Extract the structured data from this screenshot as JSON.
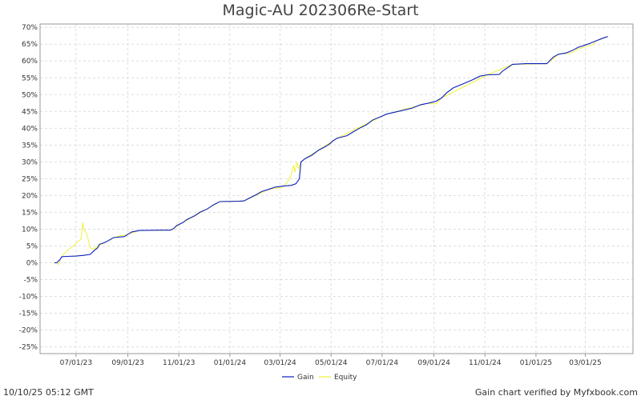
{
  "chart_data": {
    "type": "line",
    "title": "Magic-AU 202306Re-Start",
    "xlabel": "",
    "ylabel": "",
    "ylim": [
      -27,
      71
    ],
    "y_ticks": [
      70,
      65,
      60,
      55,
      50,
      45,
      40,
      35,
      30,
      25,
      20,
      15,
      10,
      5,
      0,
      -5,
      -10,
      -15,
      -20,
      -25
    ],
    "y_tick_suffix": "%",
    "x_range": [
      "2023-05-19",
      "2025-04-27"
    ],
    "x_ticks": [
      {
        "date": "2023-07-01",
        "label": "07/01/23"
      },
      {
        "date": "2023-09-01",
        "label": "09/01/23"
      },
      {
        "date": "2023-11-01",
        "label": "11/01/23"
      },
      {
        "date": "2024-01-01",
        "label": "01/01/24"
      },
      {
        "date": "2024-03-01",
        "label": "03/01/24"
      },
      {
        "date": "2024-05-01",
        "label": "05/01/24"
      },
      {
        "date": "2024-07-01",
        "label": "07/01/24"
      },
      {
        "date": "2024-09-01",
        "label": "09/01/24"
      },
      {
        "date": "2024-11-01",
        "label": "11/01/24"
      },
      {
        "date": "2025-01-01",
        "label": "01/01/25"
      },
      {
        "date": "2025-03-01",
        "label": "03/01/25"
      }
    ],
    "grid": true,
    "legend_position": "bottom-center",
    "series": [
      {
        "name": "Gain",
        "color": "#0a1fbf",
        "points": [
          [
            "2023-06-05",
            0
          ],
          [
            "2023-06-08",
            0
          ],
          [
            "2023-06-12",
            1.0
          ],
          [
            "2023-06-14",
            1.8
          ],
          [
            "2023-06-20",
            1.9
          ],
          [
            "2023-07-01",
            2.0
          ],
          [
            "2023-07-10",
            2.2
          ],
          [
            "2023-07-18",
            2.5
          ],
          [
            "2023-07-22",
            3.5
          ],
          [
            "2023-07-27",
            4.5
          ],
          [
            "2023-07-29",
            5.5
          ],
          [
            "2023-08-04",
            6.0
          ],
          [
            "2023-08-08",
            6.5
          ],
          [
            "2023-08-15",
            7.5
          ],
          [
            "2023-08-28",
            7.8
          ],
          [
            "2023-09-01",
            8.5
          ],
          [
            "2023-09-06",
            9.2
          ],
          [
            "2023-09-15",
            9.6
          ],
          [
            "2023-10-10",
            9.7
          ],
          [
            "2023-10-22",
            9.7
          ],
          [
            "2023-10-26",
            10.2
          ],
          [
            "2023-10-29",
            11.0
          ],
          [
            "2023-11-06",
            12.0
          ],
          [
            "2023-11-10",
            12.8
          ],
          [
            "2023-11-20",
            14.0
          ],
          [
            "2023-11-26",
            15.0
          ],
          [
            "2023-12-05",
            16.0
          ],
          [
            "2023-12-12",
            17.2
          ],
          [
            "2023-12-20",
            18.2
          ],
          [
            "2024-01-12",
            18.3
          ],
          [
            "2024-01-18",
            18.4
          ],
          [
            "2024-01-24",
            19.2
          ],
          [
            "2024-02-01",
            20.2
          ],
          [
            "2024-02-08",
            21.2
          ],
          [
            "2024-02-16",
            21.8
          ],
          [
            "2024-02-24",
            22.5
          ],
          [
            "2024-03-05",
            22.8
          ],
          [
            "2024-03-14",
            23.0
          ],
          [
            "2024-03-20",
            23.5
          ],
          [
            "2024-03-24",
            25.0
          ],
          [
            "2024-03-26",
            30.0
          ],
          [
            "2024-03-31",
            31.0
          ],
          [
            "2024-04-08",
            32.0
          ],
          [
            "2024-04-16",
            33.5
          ],
          [
            "2024-04-24",
            34.5
          ],
          [
            "2024-04-30",
            35.5
          ],
          [
            "2024-05-03",
            36.2
          ],
          [
            "2024-05-08",
            37.0
          ],
          [
            "2024-05-20",
            37.8
          ],
          [
            "2024-05-28",
            39.0
          ],
          [
            "2024-06-04",
            40.0
          ],
          [
            "2024-06-12",
            41.0
          ],
          [
            "2024-06-20",
            42.5
          ],
          [
            "2024-06-30",
            43.5
          ],
          [
            "2024-07-06",
            44.2
          ],
          [
            "2024-07-20",
            45.0
          ],
          [
            "2024-08-06",
            46.0
          ],
          [
            "2024-08-16",
            47.0
          ],
          [
            "2024-08-26",
            47.5
          ],
          [
            "2024-09-03",
            48.0
          ],
          [
            "2024-09-10",
            49.0
          ],
          [
            "2024-09-16",
            50.5
          ],
          [
            "2024-09-24",
            52.0
          ],
          [
            "2024-10-06",
            53.2
          ],
          [
            "2024-10-18",
            54.5
          ],
          [
            "2024-10-26",
            55.5
          ],
          [
            "2024-11-04",
            55.9
          ],
          [
            "2024-11-18",
            56.0
          ],
          [
            "2024-11-22",
            57.0
          ],
          [
            "2024-11-28",
            58.0
          ],
          [
            "2024-12-04",
            59.0
          ],
          [
            "2024-12-20",
            59.2
          ],
          [
            "2025-01-06",
            59.2
          ],
          [
            "2025-01-14",
            59.2
          ],
          [
            "2025-01-17",
            60.0
          ],
          [
            "2025-01-22",
            61.2
          ],
          [
            "2025-01-28",
            62.0
          ],
          [
            "2025-02-06",
            62.4
          ],
          [
            "2025-02-14",
            63.2
          ],
          [
            "2025-02-20",
            64.0
          ],
          [
            "2025-03-04",
            65.0
          ],
          [
            "2025-03-14",
            66.0
          ],
          [
            "2025-03-22",
            66.8
          ],
          [
            "2025-03-28",
            67.3
          ]
        ]
      },
      {
        "name": "Equity",
        "color": "#f0f03a",
        "points": [
          [
            "2023-06-05",
            0
          ],
          [
            "2023-06-08",
            0
          ],
          [
            "2023-06-10",
            -0.5
          ],
          [
            "2023-06-12",
            1.0
          ],
          [
            "2023-06-16",
            2.5
          ],
          [
            "2023-06-22",
            4.0
          ],
          [
            "2023-06-28",
            5.0
          ],
          [
            "2023-07-04",
            6.5
          ],
          [
            "2023-07-07",
            7.0
          ],
          [
            "2023-07-09",
            12.0
          ],
          [
            "2023-07-10",
            10.0
          ],
          [
            "2023-07-13",
            9.0
          ],
          [
            "2023-07-15",
            7.5
          ],
          [
            "2023-07-18",
            4.5
          ],
          [
            "2023-07-22",
            4.0
          ],
          [
            "2023-07-27",
            5.0
          ],
          [
            "2023-08-04",
            6.0
          ],
          [
            "2023-08-15",
            7.5
          ],
          [
            "2023-09-01",
            8.5
          ],
          [
            "2023-09-15",
            9.6
          ],
          [
            "2023-10-22",
            9.7
          ],
          [
            "2023-11-06",
            12.0
          ],
          [
            "2023-12-20",
            18.2
          ],
          [
            "2024-01-18",
            18.4
          ],
          [
            "2024-02-16",
            21.8
          ],
          [
            "2024-03-04",
            22.5
          ],
          [
            "2024-03-10",
            24.0
          ],
          [
            "2024-03-14",
            26.0
          ],
          [
            "2024-03-17",
            29.0
          ],
          [
            "2024-03-19",
            27.0
          ],
          [
            "2024-03-21",
            30.0
          ],
          [
            "2024-03-23",
            28.0
          ],
          [
            "2024-03-26",
            30.0
          ],
          [
            "2024-03-31",
            31.0
          ],
          [
            "2024-05-08",
            37.0
          ],
          [
            "2024-07-06",
            44.2
          ],
          [
            "2024-08-26",
            47.5
          ],
          [
            "2024-09-03",
            47.2
          ],
          [
            "2024-09-10",
            49.0
          ],
          [
            "2024-11-04",
            55.9
          ],
          [
            "2024-12-04",
            59.0
          ],
          [
            "2025-01-14",
            59.2
          ],
          [
            "2025-01-28",
            62.0
          ],
          [
            "2025-02-14",
            62.5
          ],
          [
            "2025-02-20",
            63.5
          ],
          [
            "2025-03-04",
            64.5
          ],
          [
            "2025-03-10",
            64.8
          ],
          [
            "2025-03-14",
            66.0
          ],
          [
            "2025-03-28",
            67.3
          ]
        ]
      }
    ]
  },
  "footer": {
    "timestamp": "10/10/25 05:12 GMT",
    "verified_by": "Gain chart verified by Myfxbook.com"
  }
}
